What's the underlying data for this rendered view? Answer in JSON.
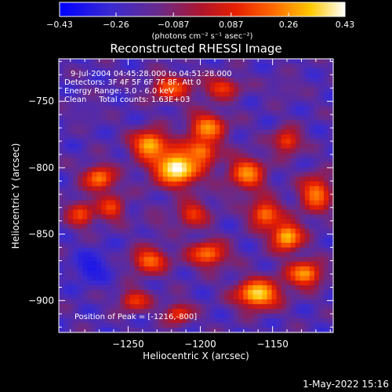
{
  "chart_data": {
    "type": "heatmap",
    "title": "Reconstructed RHESSI Image",
    "xlabel": "Heliocentric X (arcsec)",
    "ylabel": "Heliocentric Y (arcsec)",
    "xlim": [
      -1298,
      -1108
    ],
    "ylim": [
      -924,
      -718
    ],
    "x_ticks": [
      -1250,
      -1200,
      -1150
    ],
    "x_tick_labels": [
      "−1250",
      "−1200",
      "−1150"
    ],
    "y_ticks": [
      -750,
      -800,
      -850,
      -900
    ],
    "y_tick_labels": [
      "−750",
      "−800",
      "−850",
      "−900"
    ],
    "colorbar": {
      "range": [
        -0.43,
        0.43
      ],
      "tick_values": [
        -0.43,
        -0.26,
        -0.087,
        0.087,
        0.26,
        0.43
      ],
      "tick_labels": [
        "−0.43",
        "−0.26",
        "−0.087",
        "0.087",
        "0.26",
        "0.43"
      ],
      "unit_label": "(photons cm⁻² s⁻¹ asec⁻²)",
      "colormap": "blue-purple-red-yellow-white"
    },
    "annotations": [
      "9-Jul-2004 04:45:28.000 to 04:51:28.000",
      "Detectors: 3F 4F 5F 6F 7F 8F, Att 0",
      "Energy Range: 3.0 - 6.0 keV",
      "Clean     Total counts: 1.63E+03"
    ],
    "peak_label": "Position of Peak = [-1216,-800]",
    "peak_position": [
      -1216,
      -800
    ],
    "peak_value": 0.43,
    "grid": false,
    "blobs": [
      {
        "x": -1216,
        "y": -800,
        "sx": 12,
        "sy": 10,
        "v": 0.43
      },
      {
        "x": -1235,
        "y": -783,
        "sx": 9,
        "sy": 8,
        "v": 0.3
      },
      {
        "x": -1195,
        "y": -770,
        "sx": 9,
        "sy": 8,
        "v": 0.26
      },
      {
        "x": -1200,
        "y": -788,
        "sx": 8,
        "sy": 7,
        "v": 0.22
      },
      {
        "x": -1270,
        "y": -808,
        "sx": 8,
        "sy": 7,
        "v": 0.22
      },
      {
        "x": -1262,
        "y": -830,
        "sx": 7,
        "sy": 7,
        "v": 0.14
      },
      {
        "x": -1283,
        "y": -835,
        "sx": 7,
        "sy": 7,
        "v": 0.14
      },
      {
        "x": -1220,
        "y": -740,
        "sx": 10,
        "sy": 7,
        "v": 0.18
      },
      {
        "x": -1185,
        "y": -740,
        "sx": 9,
        "sy": 6,
        "v": 0.12
      },
      {
        "x": -1168,
        "y": -805,
        "sx": 9,
        "sy": 9,
        "v": 0.26
      },
      {
        "x": -1155,
        "y": -835,
        "sx": 8,
        "sy": 8,
        "v": 0.2
      },
      {
        "x": -1140,
        "y": -852,
        "sx": 8,
        "sy": 8,
        "v": 0.3
      },
      {
        "x": -1120,
        "y": -820,
        "sx": 8,
        "sy": 10,
        "v": 0.22
      },
      {
        "x": -1140,
        "y": -780,
        "sx": 7,
        "sy": 7,
        "v": 0.12
      },
      {
        "x": -1160,
        "y": -895,
        "sx": 11,
        "sy": 8,
        "v": 0.35
      },
      {
        "x": -1128,
        "y": -880,
        "sx": 9,
        "sy": 7,
        "v": 0.26
      },
      {
        "x": -1235,
        "y": -870,
        "sx": 9,
        "sy": 7,
        "v": 0.2
      },
      {
        "x": -1195,
        "y": -865,
        "sx": 10,
        "sy": 7,
        "v": 0.2
      },
      {
        "x": -1205,
        "y": -835,
        "sx": 8,
        "sy": 7,
        "v": 0.12
      },
      {
        "x": -1245,
        "y": -900,
        "sx": 8,
        "sy": 6,
        "v": 0.12
      },
      {
        "x": -1215,
        "y": -910,
        "sx": 7,
        "sy": 6,
        "v": 0.1
      },
      {
        "x": -1275,
        "y": -875,
        "sx": 9,
        "sy": 9,
        "v": -0.35
      },
      {
        "x": -1280,
        "y": -760,
        "sx": 10,
        "sy": 8,
        "v": -0.18
      },
      {
        "x": -1180,
        "y": -820,
        "sx": 7,
        "sy": 7,
        "v": -0.12
      },
      {
        "x": -1140,
        "y": -740,
        "sx": 9,
        "sy": 7,
        "v": -0.15
      },
      {
        "x": -1230,
        "y": -840,
        "sx": 7,
        "sy": 6,
        "v": -0.1
      }
    ]
  },
  "footer": {
    "date": "1-May-2022 15:16"
  }
}
